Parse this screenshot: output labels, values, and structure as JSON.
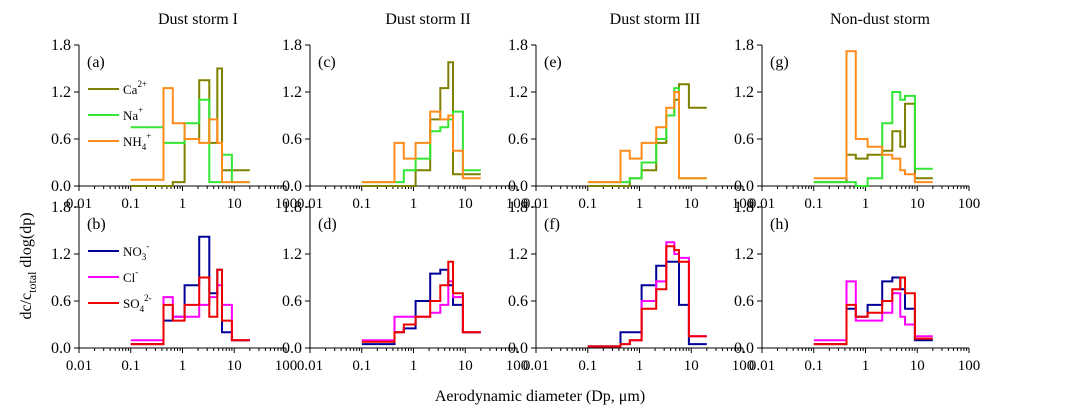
{
  "columns": [
    "Dust storm I",
    "Dust storm II",
    "Dust storm III",
    "Non-dust storm"
  ],
  "ylabel_main": "dc/c",
  "ylabel_sub": "total",
  "ylabel_tail": " dlog(dp)",
  "xlabel": "Aerodynamic diameter (Dp, μm)",
  "x_tick_labels": [
    "0.01",
    "0.1",
    "1",
    "10",
    "100"
  ],
  "y_tick_labels": [
    "0.0",
    "0.6",
    "1.2",
    "1.8"
  ],
  "legends": {
    "top": [
      {
        "base": "Ca",
        "sup": "2+",
        "sub": "",
        "color": "#808000"
      },
      {
        "base": "Na",
        "sup": "+",
        "sub": "",
        "color": "#33e633"
      },
      {
        "base": "NH",
        "sub": "4",
        "sup": "+",
        "color": "#ff8c1a"
      }
    ],
    "bottom": [
      {
        "base": "NO",
        "sub": "3",
        "sup": "-",
        "color": "#000099"
      },
      {
        "base": "Cl",
        "sub": "",
        "sup": "-",
        "color": "#ff00ff"
      },
      {
        "base": "SO",
        "sub": "4",
        "sup": "2-",
        "color": "#ee0000"
      }
    ]
  },
  "chart_data": {
    "type": "line",
    "step": true,
    "xscale": "log",
    "xlim": [
      0.01,
      100
    ],
    "ylim": [
      0,
      1.8
    ],
    "bin_edges": [
      0.1,
      0.43,
      0.65,
      1.1,
      2.1,
      3.3,
      4.7,
      5.8,
      9.0,
      20.0
    ],
    "panels": [
      {
        "label": "(a)",
        "series": [
          {
            "name": "Ca2+",
            "color": "#808000",
            "values": [
              0.0,
              0.0,
              0.05,
              0.6,
              1.35,
              0.55,
              1.5,
              0.2,
              0.2
            ]
          },
          {
            "name": "Na+",
            "color": "#33e633",
            "values": [
              0.75,
              0.55,
              0.55,
              0.8,
              1.1,
              0.05,
              0.05,
              0.4,
              0.05
            ]
          },
          {
            "name": "NH4+",
            "color": "#ff8c1a",
            "values": [
              0.08,
              1.25,
              0.8,
              0.6,
              0.55,
              0.85,
              0.55,
              0.05,
              0.05
            ]
          }
        ]
      },
      {
        "label": "(c)",
        "series": [
          {
            "name": "Ca2+",
            "color": "#808000",
            "values": [
              0.0,
              0.0,
              0.0,
              0.2,
              0.85,
              1.25,
              1.58,
              0.15,
              0.15
            ]
          },
          {
            "name": "Na+",
            "color": "#33e633",
            "values": [
              0.05,
              0.05,
              0.2,
              0.35,
              0.7,
              0.75,
              0.85,
              0.95,
              0.2
            ]
          },
          {
            "name": "NH4+",
            "color": "#ff8c1a",
            "values": [
              0.05,
              0.55,
              0.35,
              0.55,
              0.95,
              0.85,
              0.9,
              0.45,
              0.1
            ]
          }
        ]
      },
      {
        "label": "(e)",
        "series": [
          {
            "name": "Ca2+",
            "color": "#808000",
            "values": [
              0.0,
              0.0,
              0.1,
              0.2,
              0.55,
              0.9,
              1.1,
              1.3,
              1.0
            ]
          },
          {
            "name": "Na+",
            "color": "#33e633",
            "values": [
              0.05,
              0.05,
              0.1,
              0.3,
              0.6,
              0.9,
              1.25,
              0.1,
              0.1
            ]
          },
          {
            "name": "NH4+",
            "color": "#ff8c1a",
            "values": [
              0.05,
              0.45,
              0.35,
              0.55,
              0.75,
              1.0,
              1.2,
              0.1,
              0.1
            ]
          }
        ]
      },
      {
        "label": "(g)",
        "series": [
          {
            "name": "Ca2+",
            "color": "#808000",
            "values": [
              0.05,
              0.4,
              0.35,
              0.4,
              0.45,
              0.7,
              0.5,
              1.05,
              0.1
            ]
          },
          {
            "name": "Na+",
            "color": "#33e633",
            "values": [
              0.05,
              0.05,
              0.0,
              0.1,
              0.8,
              1.2,
              1.1,
              1.15,
              0.22
            ]
          },
          {
            "name": "NH4+",
            "color": "#ff8c1a",
            "values": [
              0.1,
              1.72,
              0.6,
              0.5,
              0.4,
              0.35,
              0.2,
              0.15,
              0.05
            ]
          }
        ]
      },
      {
        "label": "(b)",
        "series": [
          {
            "name": "NO3-",
            "color": "#000099",
            "values": [
              0.05,
              0.35,
              0.4,
              0.8,
              1.42,
              0.7,
              1.0,
              0.2,
              0.1
            ]
          },
          {
            "name": "Cl-",
            "color": "#ff00ff",
            "values": [
              0.1,
              0.65,
              0.4,
              0.4,
              0.55,
              0.65,
              0.8,
              0.55,
              0.1
            ]
          },
          {
            "name": "SO42-",
            "color": "#ee0000",
            "values": [
              0.05,
              0.55,
              0.35,
              0.55,
              0.9,
              0.4,
              1.0,
              0.35,
              0.1
            ]
          }
        ]
      },
      {
        "label": "(d)",
        "series": [
          {
            "name": "NO3-",
            "color": "#000099",
            "values": [
              0.05,
              0.2,
              0.25,
              0.6,
              0.95,
              1.0,
              0.8,
              0.55,
              0.2
            ]
          },
          {
            "name": "Cl-",
            "color": "#ff00ff",
            "values": [
              0.1,
              0.4,
              0.4,
              0.4,
              0.45,
              0.55,
              0.85,
              0.65,
              0.2
            ]
          },
          {
            "name": "SO42-",
            "color": "#ee0000",
            "values": [
              0.08,
              0.2,
              0.3,
              0.4,
              0.6,
              0.8,
              1.1,
              0.7,
              0.2
            ]
          }
        ]
      },
      {
        "label": "(f)",
        "series": [
          {
            "name": "NO3-",
            "color": "#000099",
            "values": [
              0.02,
              0.2,
              0.2,
              0.8,
              1.05,
              1.1,
              1.1,
              0.55,
              0.05
            ]
          },
          {
            "name": "Cl-",
            "color": "#ff00ff",
            "values": [
              0.02,
              0.05,
              0.1,
              0.6,
              0.85,
              1.35,
              1.2,
              1.15,
              0.15
            ]
          },
          {
            "name": "SO42-",
            "color": "#ee0000",
            "values": [
              0.02,
              0.05,
              0.1,
              0.5,
              0.75,
              1.3,
              1.25,
              1.1,
              0.15
            ]
          }
        ]
      },
      {
        "label": "(h)",
        "series": [
          {
            "name": "NO3-",
            "color": "#000099",
            "values": [
              0.05,
              0.5,
              0.4,
              0.55,
              0.85,
              0.9,
              0.75,
              0.5,
              0.1
            ]
          },
          {
            "name": "Cl-",
            "color": "#ff00ff",
            "values": [
              0.1,
              0.85,
              0.35,
              0.35,
              0.45,
              0.7,
              0.4,
              0.3,
              0.15
            ]
          },
          {
            "name": "SO42-",
            "color": "#ee0000",
            "values": [
              0.05,
              0.55,
              0.4,
              0.45,
              0.6,
              0.75,
              0.9,
              0.7,
              0.12
            ]
          }
        ]
      }
    ]
  }
}
